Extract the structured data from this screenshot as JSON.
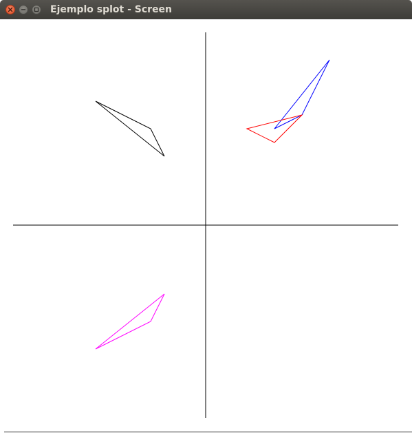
{
  "window": {
    "title": "Ejemplo splot - Screen"
  },
  "titlebar_buttons": [
    {
      "name": "close-button",
      "icon": "close-icon"
    },
    {
      "name": "minimize-button",
      "icon": "minimize-icon"
    },
    {
      "name": "maximize-button",
      "icon": "maximize-icon"
    }
  ],
  "colors": {
    "titlebar": "#3d3c38",
    "title_text": "#dfdbd2",
    "close_button": "#de4b1f",
    "axes": "#000000",
    "shape_black": "#000000",
    "shape_blue": "#0000ff",
    "shape_red": "#ff0000",
    "shape_magenta": "#ff00ff"
  },
  "chart_data": {
    "type": "line",
    "title": "",
    "xlabel": "",
    "ylabel": "",
    "xlim": [
      -7,
      7
    ],
    "ylim": [
      -7,
      7
    ],
    "axes": "cross through origin, no ticks",
    "grid": false,
    "series": [
      {
        "color": "#000000",
        "closed": true,
        "points": [
          [
            -4,
            4.5
          ],
          [
            -2,
            3.5
          ],
          [
            -1.5,
            2.5
          ]
        ]
      },
      {
        "color": "#0000ff",
        "closed": true,
        "points": [
          [
            2.5,
            3.5
          ],
          [
            4.5,
            6
          ],
          [
            3.5,
            4
          ]
        ]
      },
      {
        "color": "#ff0000",
        "closed": true,
        "points": [
          [
            1.5,
            3.5
          ],
          [
            3.5,
            4
          ],
          [
            2.5,
            3
          ]
        ]
      },
      {
        "color": "#ff00ff",
        "closed": true,
        "points": [
          [
            -1.5,
            -2.5
          ],
          [
            -2,
            -3.5
          ],
          [
            -4,
            -4.5
          ]
        ]
      }
    ]
  }
}
